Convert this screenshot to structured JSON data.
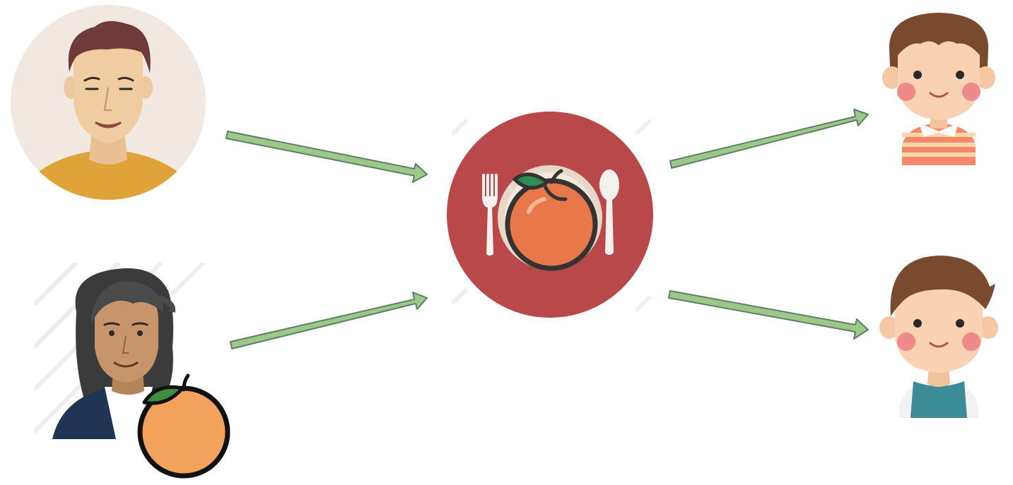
{
  "diagram": {
    "nodes": [
      {
        "id": "man",
        "icon": "man-avatar-icon"
      },
      {
        "id": "woman",
        "icon": "woman-avatar-icon",
        "holding": "orange-icon"
      },
      {
        "id": "plate",
        "icon": "dinner-plate-with-orange-icon"
      },
      {
        "id": "girl",
        "icon": "girl-avatar-icon"
      },
      {
        "id": "boy",
        "icon": "boy-avatar-icon"
      }
    ],
    "edges": [
      {
        "from": "man",
        "to": "plate"
      },
      {
        "from": "woman",
        "to": "plate"
      },
      {
        "from": "plate",
        "to": "girl"
      },
      {
        "from": "plate",
        "to": "boy"
      }
    ]
  },
  "colors": {
    "arrow_fill": "#9CC88A",
    "arrow_stroke": "#5E7F63",
    "plate_disc": "#B8484A",
    "orange": "#E8774A",
    "skin": "#F0CDA0"
  }
}
